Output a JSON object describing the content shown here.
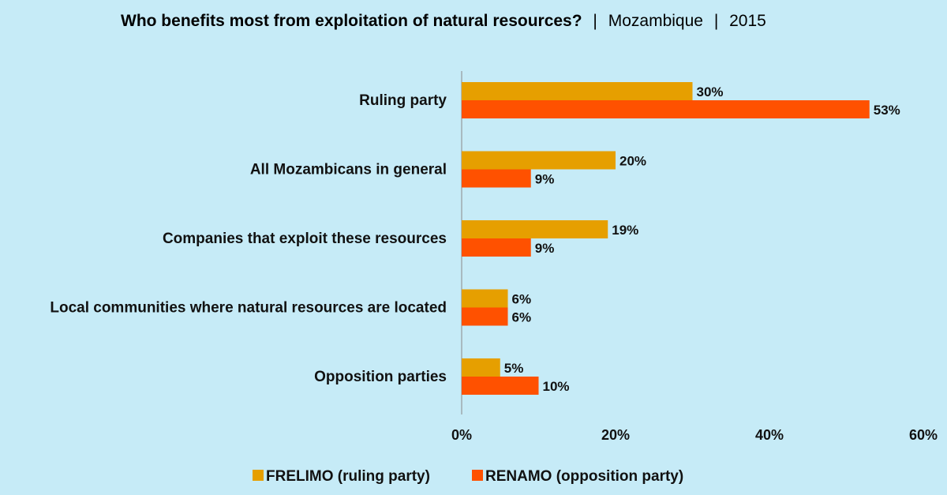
{
  "chart_data": {
    "type": "bar",
    "orientation": "horizontal",
    "title": "Who benefits most from exploitation of natural resources?",
    "subtitle_parts": [
      "Mozambique",
      "2015"
    ],
    "separator": "|",
    "categories": [
      "Ruling party",
      "All Mozambicans in general",
      "Companies that exploit these resources",
      "Local communities where natural resources are located",
      "Opposition parties"
    ],
    "series": [
      {
        "name": "FRELIMO (ruling party)",
        "color": "#e69f00",
        "values": [
          30,
          20,
          19,
          6,
          5
        ],
        "labels": [
          "30%",
          "20%",
          "19%",
          "6%",
          "5%"
        ]
      },
      {
        "name": "RENAMO (opposition party)",
        "color": "#ff5100",
        "values": [
          53,
          9,
          9,
          6,
          10
        ],
        "labels": [
          "53%",
          "9%",
          "9%",
          "6%",
          "10%"
        ]
      }
    ],
    "xlim": [
      0,
      60
    ],
    "xticks": [
      0,
      20,
      40,
      60
    ],
    "xtick_labels": [
      "0%",
      "20%",
      "40%",
      "60%"
    ],
    "grid": false,
    "legend_position": "bottom"
  }
}
